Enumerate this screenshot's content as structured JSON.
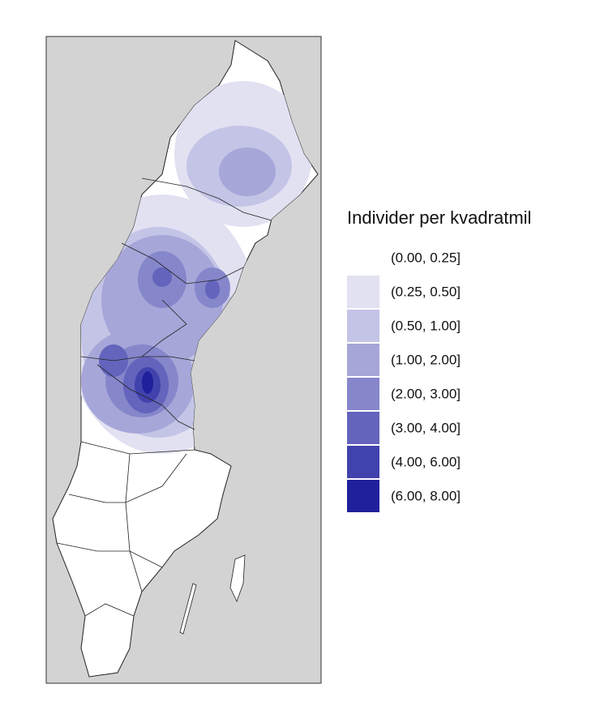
{
  "legend": {
    "title": "Individer per kvadratmil",
    "items": [
      {
        "label": "(0.00, 0.25]",
        "color": "#ffffff"
      },
      {
        "label": "(0.25, 0.50]",
        "color": "#e1e1f2"
      },
      {
        "label": "(0.50, 1.00]",
        "color": "#c4c4e6"
      },
      {
        "label": "(1.00, 2.00]",
        "color": "#a6a6d9"
      },
      {
        "label": "(2.00, 3.00]",
        "color": "#8686cb"
      },
      {
        "label": "(3.00, 4.00]",
        "color": "#6464bd"
      },
      {
        "label": "(4.00, 6.00]",
        "color": "#4242ad"
      },
      {
        "label": "(6.00, 8.00]",
        "color": "#20209c"
      }
    ]
  }
}
